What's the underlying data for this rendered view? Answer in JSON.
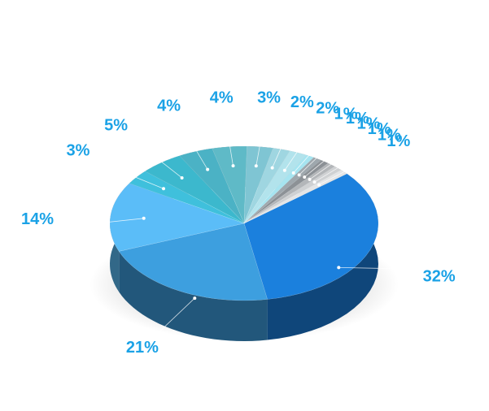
{
  "chart_data": {
    "type": "pie3d",
    "values": [
      32,
      21,
      14,
      3,
      5,
      4,
      4,
      3,
      2,
      2,
      1,
      1,
      1,
      1,
      1,
      1
    ],
    "value_labels": [
      "32%",
      "21%",
      "14%",
      "3%",
      "5%",
      "4%",
      "4%",
      "3%",
      "2%",
      "2%",
      "1%",
      "1%",
      "1%",
      "1%",
      "1%",
      "1%"
    ],
    "colors": [
      "#1b80dd",
      "#3d9fdf",
      "#5bbdf8",
      "#3fc0dc",
      "#3cb8cd",
      "#4bb2c5",
      "#5fbac7",
      "#7fc5d3",
      "#9fd6e1",
      "#b2e3ec",
      "#a6e4f0",
      "#9ea7ad",
      "#8c9196",
      "#b3b6b9",
      "#cfd1d3",
      "#e4e5e6"
    ]
  }
}
